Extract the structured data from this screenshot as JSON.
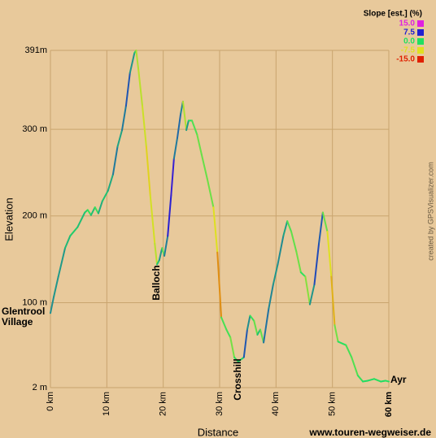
{
  "chart_data": {
    "type": "line",
    "x_label": "Distance",
    "y_label": "Elevation",
    "legend_title": "Slope [est.] (%)",
    "slope_legend": [
      {
        "value": 15,
        "label": "15.0",
        "color": "#e020e0"
      },
      {
        "value": 7.5,
        "label": "7.5",
        "color": "#2020d0"
      },
      {
        "value": 0,
        "label": "0.0",
        "color": "#20e060"
      },
      {
        "value": -7.5,
        "label": "-7.5",
        "color": "#e0e020"
      },
      {
        "value": -15,
        "label": "-15.0",
        "color": "#e02000"
      }
    ],
    "annotations": [
      "Glentrool Village",
      "Balloch",
      "Crosshill",
      "Ayr"
    ],
    "credit": "www.touren-wegweiser.de",
    "creator": "created by GPSVisualizer.com",
    "xlim": [
      0,
      60
    ],
    "xticks": [
      {
        "value": 0,
        "label": "0 km"
      },
      {
        "value": 10,
        "label": "10 km"
      },
      {
        "value": 20,
        "label": "20 km"
      },
      {
        "value": 30,
        "label": "30 km"
      },
      {
        "value": 40,
        "label": "40 km"
      },
      {
        "value": 50,
        "label": "50 km"
      },
      {
        "value": 60,
        "label": "60 km"
      }
    ],
    "ylim": [
      2,
      391
    ],
    "yticks": [
      {
        "value": 2,
        "label": "2 m"
      },
      {
        "value": 100,
        "label": "100 m"
      },
      {
        "value": 200,
        "label": "200 m"
      },
      {
        "value": 300,
        "label": "300 m"
      },
      {
        "value": 391,
        "label": "391m"
      }
    ],
    "grid": true,
    "x": [
      0,
      0.6,
      1.4,
      2.6,
      3.5,
      4.8,
      6.1,
      6.6,
      7.2,
      7.9,
      8.5,
      9.2,
      10.2,
      11.1,
      11.9,
      12.7,
      13.4,
      14.1,
      14.9,
      15.2,
      15.6,
      16.3,
      17.0,
      17.7,
      18.5,
      18.9,
      19.3,
      19.8,
      20.2,
      20.8,
      21.4,
      21.9,
      22.5,
      23.1,
      23.5,
      24.1,
      24.5,
      25.1,
      26.0,
      26.8,
      27.8,
      28.9,
      29.6,
      30.3,
      31.2,
      31.9,
      32.6,
      33.3,
      34.3,
      34.9,
      35.4,
      36.1,
      36.7,
      37.2,
      37.8,
      38.7,
      39.5,
      40.3,
      41.3,
      42.0,
      42.7,
      43.6,
      44.4,
      45.2,
      46.0,
      46.8,
      47.6,
      48.3,
      49.1,
      49.8,
      50.4,
      51.0,
      52.4,
      53.4,
      54.5,
      55.4,
      56.3,
      57.4,
      58.6,
      59.4,
      60.0
    ],
    "series": [
      {
        "name": "Elevation",
        "values": [
          88,
          107,
          130,
          163,
          177,
          187,
          204,
          207,
          201,
          210,
          203,
          217,
          229,
          248,
          280,
          299,
          327,
          365,
          388,
          391,
          369,
          327,
          280,
          224,
          168,
          144,
          149,
          163,
          154,
          177,
          224,
          266,
          290,
          318,
          332,
          299,
          310,
          310,
          294,
          271,
          243,
          210,
          158,
          83,
          69,
          60,
          37,
          32,
          37,
          69,
          85,
          79,
          63,
          69,
          54,
          93,
          121,
          144,
          177,
          194,
          182,
          159,
          135,
          130,
          98,
          121,
          168,
          204,
          182,
          130,
          74,
          55,
          51,
          37,
          16,
          9,
          10,
          12,
          9,
          10,
          9
        ]
      }
    ]
  }
}
